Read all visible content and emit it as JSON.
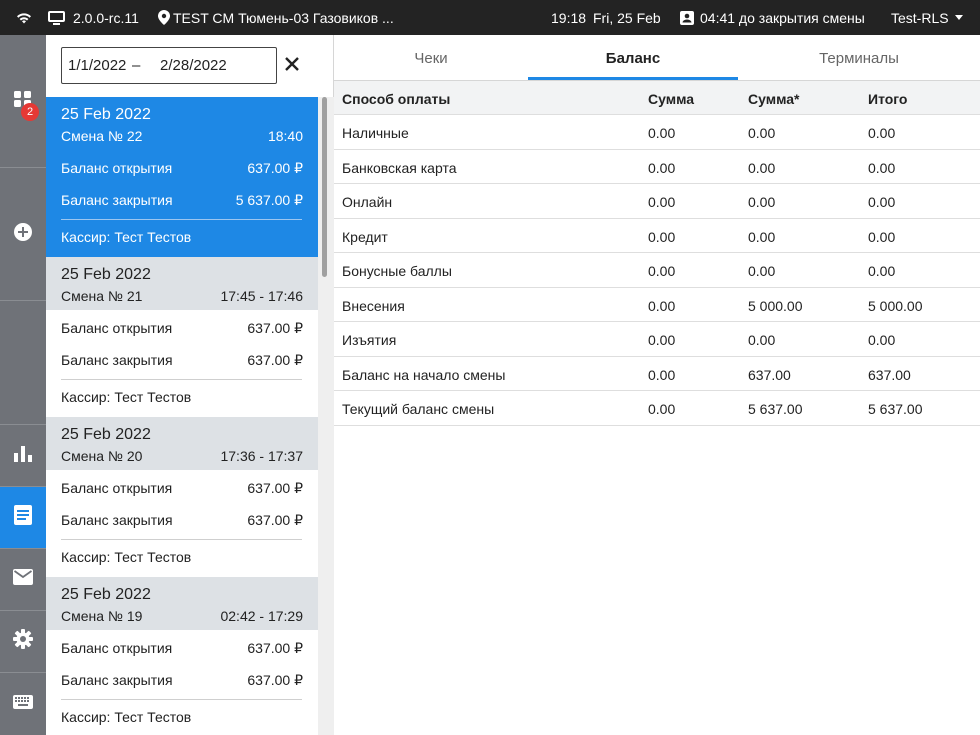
{
  "statusbar": {
    "version": "2.0.0-rc.11",
    "store": "TEST CM Тюмень-03 Газовиков ...",
    "time": "19:18",
    "date": "Fri, 25 Feb",
    "shift_close": "04:41 до закрытия смены",
    "user": "Test-RLS"
  },
  "rail": {
    "items": [
      {
        "icon": "dashboard-icon"
      },
      {
        "icon": "add-circle-icon"
      },
      {
        "icon": "bar-chart-icon"
      },
      {
        "icon": "document-icon"
      },
      {
        "icon": "mail-icon"
      },
      {
        "icon": "gear-icon"
      },
      {
        "icon": "keyboard-icon"
      }
    ],
    "badge": "2"
  },
  "filter": {
    "date_from": "1/1/2022",
    "separator": "–",
    "date_to": "2/28/2022"
  },
  "shifts": [
    {
      "date": "25 Feb 2022",
      "shift": "Смена № 22",
      "time": "18:40",
      "open_label": "Баланс открытия",
      "open_value": "637.00 ₽",
      "close_label": "Баланс закрытия",
      "close_value": "5 637.00 ₽",
      "cashier": "Кассир: Тест Тестов"
    },
    {
      "date": "25 Feb 2022",
      "shift": "Смена № 21",
      "time": "17:45 - 17:46",
      "open_label": "Баланс открытия",
      "open_value": "637.00 ₽",
      "close_label": "Баланс закрытия",
      "close_value": "637.00 ₽",
      "cashier": "Кассир: Тест Тестов"
    },
    {
      "date": "25 Feb 2022",
      "shift": "Смена № 20",
      "time": "17:36 - 17:37",
      "open_label": "Баланс открытия",
      "open_value": "637.00 ₽",
      "close_label": "Баланс закрытия",
      "close_value": "637.00 ₽",
      "cashier": "Кассир: Тест Тестов"
    },
    {
      "date": "25 Feb 2022",
      "shift": "Смена № 19",
      "time": "02:42 - 17:29",
      "open_label": "Баланс открытия",
      "open_value": "637.00 ₽",
      "close_label": "Баланс закрытия",
      "close_value": "637.00 ₽",
      "cashier": "Кассир: Тест Тестов"
    }
  ],
  "tabs": [
    "Чеки",
    "Баланс",
    "Терминалы"
  ],
  "table": {
    "headers": [
      "Способ оплаты",
      "Сумма",
      "Сумма*",
      "Итого"
    ],
    "rows": [
      [
        "Наличные",
        "0.00",
        "0.00",
        "0.00"
      ],
      [
        "Банковская карта",
        "0.00",
        "0.00",
        "0.00"
      ],
      [
        "Онлайн",
        "0.00",
        "0.00",
        "0.00"
      ],
      [
        "Кредит",
        "0.00",
        "0.00",
        "0.00"
      ],
      [
        "Бонусные баллы",
        "0.00",
        "0.00",
        "0.00"
      ],
      [
        "Внесения",
        "0.00",
        "5 000.00",
        "5 000.00"
      ],
      [
        "Изъятия",
        "0.00",
        "0.00",
        "0.00"
      ],
      [
        "Баланс на начало смены",
        "0.00",
        "637.00",
        "637.00"
      ],
      [
        "Текущий баланс смены",
        "0.00",
        "5 637.00",
        "5 637.00"
      ]
    ]
  }
}
